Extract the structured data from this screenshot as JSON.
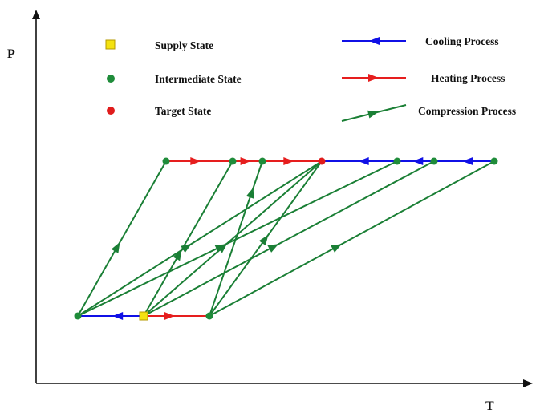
{
  "axes": {
    "y_label": "P",
    "x_label": "T"
  },
  "legend": {
    "supply": "Supply State",
    "intermediate": "Intermediate State",
    "target": "Target State",
    "cooling": "Cooling Process",
    "heating": "Heating Process",
    "compression": "Compression Process"
  },
  "colors": {
    "cooling": "#1010e6",
    "heating": "#e61e1e",
    "compression": "#1a7f35",
    "intermediate": "#1f8c3a",
    "target": "#e01c1c",
    "supply": "#f4e211",
    "axis": "#111111"
  }
}
